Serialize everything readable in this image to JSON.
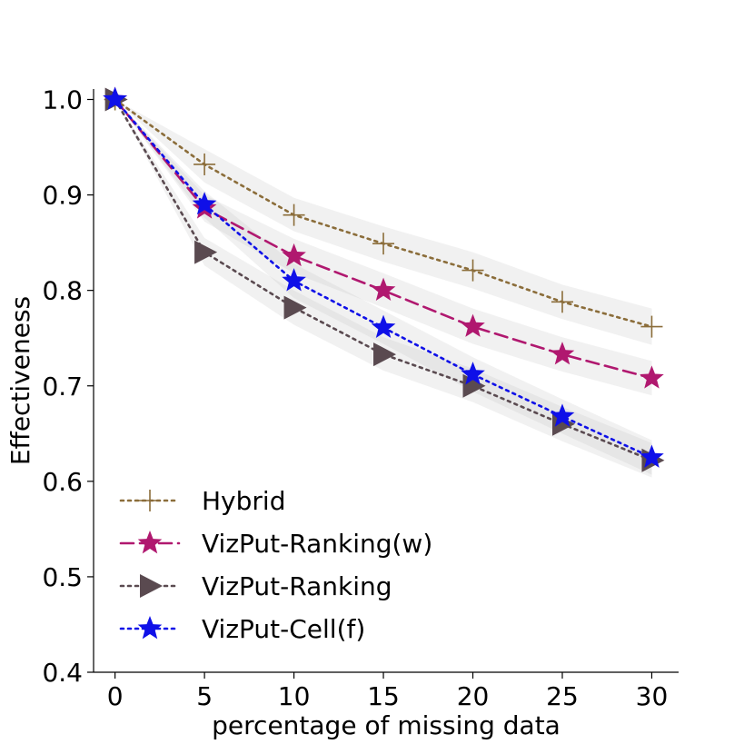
{
  "chart_data": {
    "type": "line",
    "title": "",
    "xlabel": "percentage of missing data",
    "ylabel": "Effectiveness",
    "x": [
      0,
      5,
      10,
      15,
      20,
      25,
      30
    ],
    "xlim": [
      -1.2,
      31.5
    ],
    "ylim": [
      0.4,
      1.0
    ],
    "xticks": [
      0,
      5,
      10,
      15,
      20,
      25,
      30
    ],
    "yticks": [
      0.4,
      0.5,
      0.6,
      0.7,
      0.8,
      0.9,
      1.0
    ],
    "xtick_labels": [
      "0",
      "5",
      "10",
      "15",
      "20",
      "25",
      "30"
    ],
    "ytick_labels": [
      "0.4",
      "0.5",
      "0.6",
      "0.7",
      "0.8",
      "0.9",
      "1.0"
    ],
    "legend_position": "lower-left",
    "series": [
      {
        "name": "Hybrid",
        "values": [
          1.0,
          0.932,
          0.879,
          0.849,
          0.821,
          0.788,
          0.762
        ],
        "band": [
          [
            1.0,
            1.0
          ],
          [
            0.913,
            0.948
          ],
          [
            0.862,
            0.897
          ],
          [
            0.83,
            0.867
          ],
          [
            0.802,
            0.84
          ],
          [
            0.77,
            0.806
          ],
          [
            0.743,
            0.781
          ]
        ],
        "color": "#8b6d3a",
        "dash": "dotted",
        "marker": "plus"
      },
      {
        "name": "VizPut-Ranking(w)",
        "values": [
          1.0,
          0.886,
          0.836,
          0.8,
          0.762,
          0.733,
          0.708
        ],
        "band": [
          [
            1.0,
            1.0
          ],
          [
            0.872,
            0.9
          ],
          [
            0.818,
            0.854
          ],
          [
            0.782,
            0.818
          ],
          [
            0.744,
            0.781
          ],
          [
            0.715,
            0.751
          ],
          [
            0.69,
            0.726
          ]
        ],
        "color": "#b0186f",
        "dash": "dashed",
        "marker": "star"
      },
      {
        "name": "VizPut-Ranking",
        "values": [
          1.0,
          0.84,
          0.782,
          0.733,
          0.7,
          0.66,
          0.622
        ],
        "band": [
          [
            1.0,
            1.0
          ],
          [
            0.826,
            0.855
          ],
          [
            0.764,
            0.8
          ],
          [
            0.716,
            0.751
          ],
          [
            0.683,
            0.718
          ],
          [
            0.642,
            0.678
          ],
          [
            0.604,
            0.64
          ]
        ],
        "color": "#5a4a50",
        "dash": "dotted",
        "marker": "triangle-right"
      },
      {
        "name": "VizPut-Cell(f)",
        "values": [
          1.0,
          0.89,
          0.81,
          0.761,
          0.712,
          0.668,
          0.625
        ],
        "band": [
          [
            1.0,
            1.0
          ],
          [
            0.876,
            0.904
          ],
          [
            0.792,
            0.828
          ],
          [
            0.744,
            0.779
          ],
          [
            0.694,
            0.73
          ],
          [
            0.65,
            0.686
          ],
          [
            0.607,
            0.643
          ]
        ],
        "color": "#0f10e8",
        "dash": "dotted",
        "marker": "star"
      }
    ]
  }
}
